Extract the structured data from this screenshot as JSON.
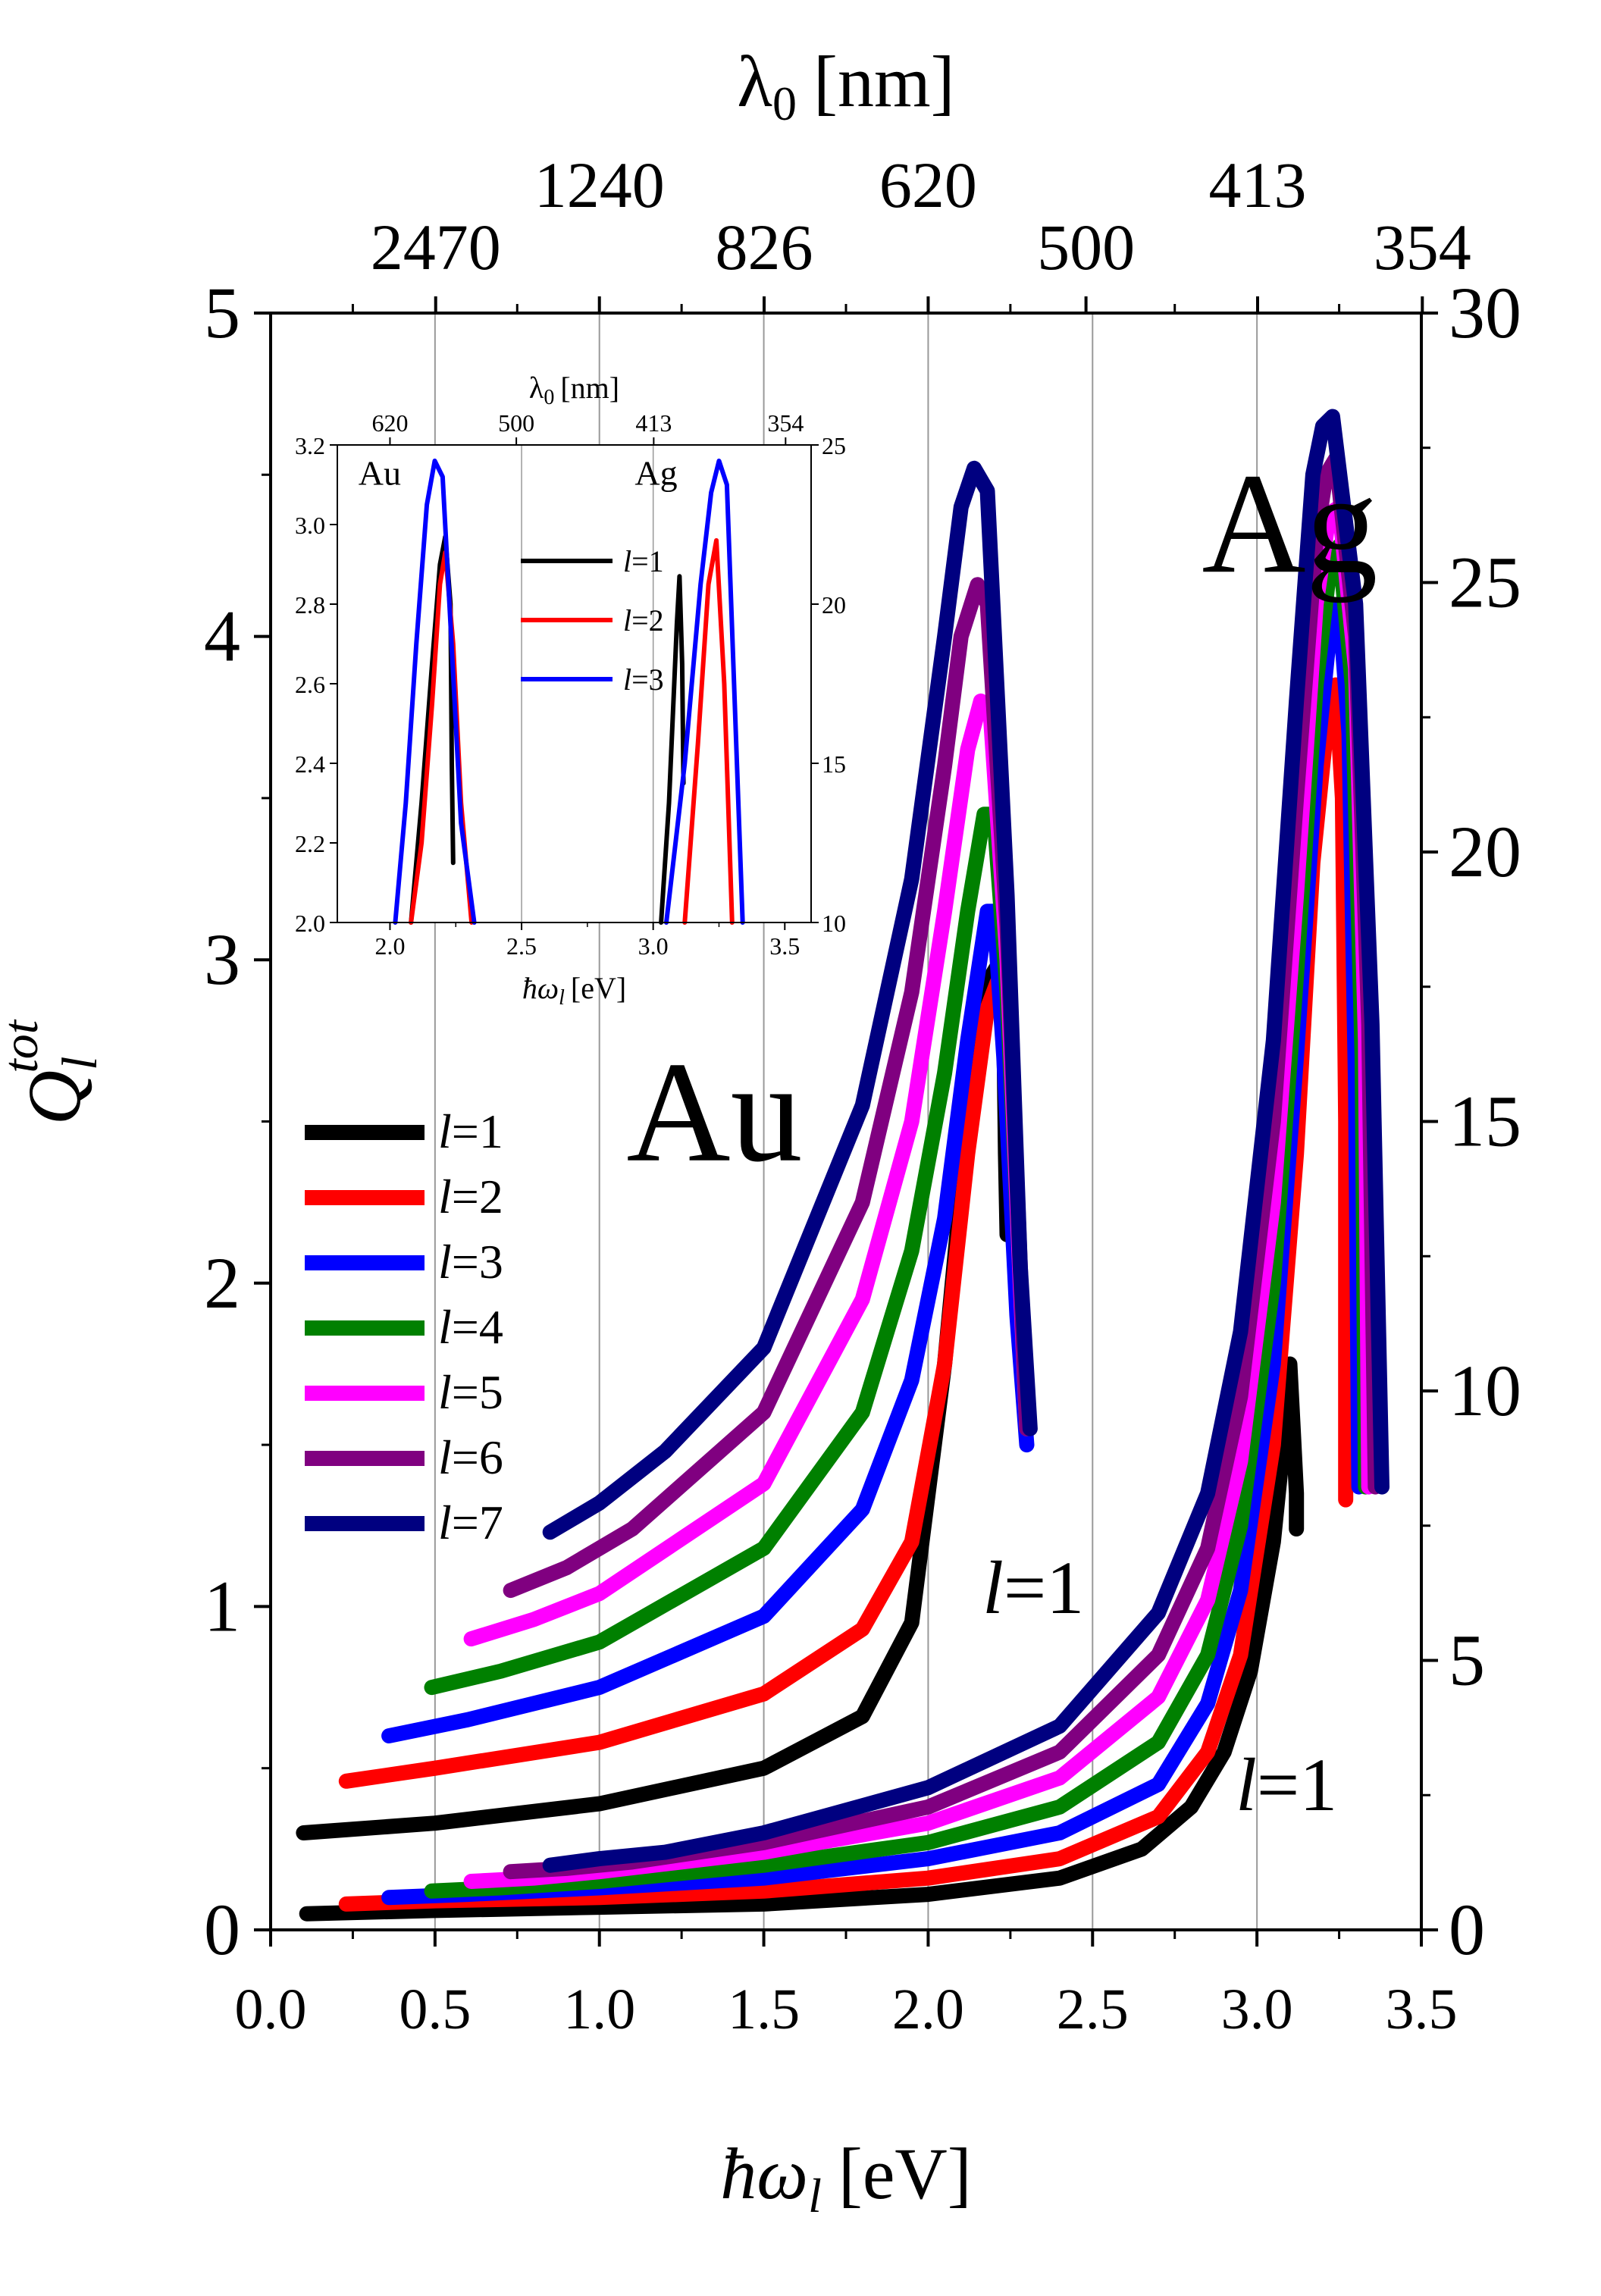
{
  "chart_data": {
    "type": "line",
    "title": "",
    "xlabel": "ħω",
    "xlabel_sub": "l",
    "xlabel_unit": "[eV]",
    "ylabel": "Q",
    "ylabel_sub": "l",
    "ylabel_sup": "tot",
    "top_axis_label": "λ",
    "top_axis_label_sub": "0",
    "top_axis_label_unit": "[nm]",
    "xlim": [
      0.0,
      3.5
    ],
    "ylim_left": [
      0,
      5
    ],
    "ylim_right": [
      0,
      30
    ],
    "x_ticks": [
      "0.0",
      "0.5",
      "1.0",
      "1.5",
      "2.0",
      "2.5",
      "3.0",
      "3.5"
    ],
    "y_left_ticks": [
      "0",
      "1",
      "2",
      "3",
      "4",
      "5"
    ],
    "y_right_ticks": [
      "0",
      "5",
      "10",
      "15",
      "20",
      "25",
      "30"
    ],
    "top_ticks": [
      {
        "label": "2470",
        "ev": 0.502
      },
      {
        "label": "1240",
        "ev": 1.0
      },
      {
        "label": "826",
        "ev": 1.501
      },
      {
        "label": "620",
        "ev": 2.0
      },
      {
        "label": "500",
        "ev": 2.48
      },
      {
        "label": "413",
        "ev": 3.002
      },
      {
        "label": "354",
        "ev": 3.503
      }
    ],
    "grid_x": [
      0.5,
      1.0,
      1.5,
      2.0,
      2.5,
      3.0
    ],
    "annotations": [
      {
        "text": "Au",
        "x": 1.35,
        "y": 2.38
      },
      {
        "text": "Ag",
        "x": 3.1,
        "y": 4.2
      },
      {
        "text": "l=1",
        "x": 2.32,
        "y": 0.98
      },
      {
        "text": "l=1",
        "x": 3.09,
        "y": 0.37
      }
    ],
    "legend": [
      "l=1",
      "l=2",
      "l=3",
      "l=4",
      "l=5",
      "l=6",
      "l=7"
    ],
    "legend_prefix": "l",
    "legend_values": [
      "=1",
      "=2",
      "=3",
      "=4",
      "=5",
      "=6",
      "=7"
    ],
    "legend_position": "left-middle",
    "colors": [
      "#000000",
      "#ff0000",
      "#0000ff",
      "#008000",
      "#ff00ff",
      "#800080",
      "#000080"
    ],
    "series_au": [
      {
        "name": "l=1",
        "x": [
          0.1,
          0.5,
          1.0,
          1.5,
          1.8,
          1.95,
          2.05,
          2.12,
          2.18,
          2.21,
          2.23,
          2.235,
          2.24
        ],
        "y": [
          0.3,
          0.33,
          0.39,
          0.5,
          0.66,
          0.95,
          1.75,
          2.5,
          2.93,
          2.98,
          2.8,
          2.4,
          2.15
        ]
      },
      {
        "name": "l=2",
        "x": [
          0.23,
          0.5,
          1.0,
          1.5,
          1.8,
          1.95,
          2.05,
          2.12,
          2.18,
          2.21,
          2.24,
          2.26,
          2.28
        ],
        "y": [
          0.46,
          0.5,
          0.58,
          0.73,
          0.93,
          1.2,
          1.75,
          2.4,
          2.85,
          2.93,
          2.7,
          2.2,
          1.88
        ]
      },
      {
        "name": "l=3",
        "x": [
          0.36,
          0.6,
          1.0,
          1.5,
          1.8,
          1.95,
          2.05,
          2.12,
          2.18,
          2.2,
          2.23,
          2.27,
          2.3
        ],
        "y": [
          0.6,
          0.65,
          0.75,
          0.97,
          1.3,
          1.7,
          2.2,
          2.75,
          3.15,
          3.15,
          2.7,
          1.9,
          1.5
        ]
      },
      {
        "name": "l=4",
        "x": [
          0.49,
          0.7,
          1.0,
          1.5,
          1.8,
          1.95,
          2.05,
          2.12,
          2.17,
          2.2,
          2.24,
          2.28,
          2.3
        ],
        "y": [
          0.75,
          0.8,
          0.89,
          1.18,
          1.6,
          2.1,
          2.65,
          3.15,
          3.45,
          3.45,
          2.9,
          2.0,
          1.55
        ]
      },
      {
        "name": "l=5",
        "x": [
          0.61,
          0.8,
          1.0,
          1.5,
          1.8,
          1.95,
          2.05,
          2.12,
          2.16,
          2.19,
          2.24,
          2.28,
          2.3
        ],
        "y": [
          0.9,
          0.96,
          1.04,
          1.38,
          1.95,
          2.5,
          3.15,
          3.65,
          3.8,
          3.75,
          3.0,
          2.0,
          1.55
        ]
      },
      {
        "name": "l=6",
        "x": [
          0.73,
          0.9,
          1.1,
          1.5,
          1.8,
          1.95,
          2.05,
          2.1,
          2.15,
          2.18,
          2.24,
          2.28,
          2.3
        ],
        "y": [
          1.05,
          1.12,
          1.24,
          1.6,
          2.25,
          2.9,
          3.6,
          4.0,
          4.16,
          4.1,
          3.1,
          2.05,
          1.55
        ]
      },
      {
        "name": "l=7",
        "x": [
          0.85,
          1.0,
          1.2,
          1.5,
          1.8,
          1.95,
          2.05,
          2.1,
          2.14,
          2.18,
          2.24,
          2.28,
          2.31
        ],
        "y": [
          1.23,
          1.32,
          1.48,
          1.8,
          2.55,
          3.25,
          4.0,
          4.4,
          4.52,
          4.45,
          3.2,
          2.05,
          1.55
        ]
      }
    ],
    "series_ag": [
      {
        "name": "l=1",
        "x": [
          0.11,
          0.5,
          1.0,
          1.5,
          2.0,
          2.4,
          2.65,
          2.8,
          2.9,
          2.98,
          3.05,
          3.09,
          3.1,
          3.11,
          3.12,
          3.12
        ],
        "y": [
          0.05,
          0.06,
          0.07,
          0.08,
          0.11,
          0.16,
          0.25,
          0.38,
          0.55,
          0.8,
          1.2,
          1.6,
          1.75,
          1.55,
          1.35,
          1.24
        ]
      },
      {
        "name": "l=2",
        "x": [
          0.23,
          0.5,
          1.0,
          1.5,
          2.0,
          2.4,
          2.7,
          2.85,
          2.95,
          3.05,
          3.12,
          3.17,
          3.21,
          3.24,
          3.26,
          3.27,
          3.27
        ],
        "y": [
          0.08,
          0.09,
          0.1,
          0.12,
          0.16,
          0.22,
          0.35,
          0.55,
          0.85,
          1.5,
          2.4,
          3.3,
          3.7,
          3.85,
          3.5,
          2.5,
          1.33
        ]
      },
      {
        "name": "l=3",
        "x": [
          0.36,
          0.6,
          1.0,
          1.5,
          2.0,
          2.4,
          2.7,
          2.85,
          2.95,
          3.05,
          3.12,
          3.18,
          3.22,
          3.25,
          3.28,
          3.3,
          3.31
        ],
        "y": [
          0.1,
          0.11,
          0.13,
          0.16,
          0.22,
          0.3,
          0.45,
          0.7,
          1.05,
          1.75,
          2.7,
          3.6,
          4.0,
          4.1,
          3.7,
          2.6,
          1.37
        ]
      },
      {
        "name": "l=4",
        "x": [
          0.49,
          0.7,
          1.0,
          1.5,
          2.0,
          2.4,
          2.7,
          2.85,
          2.95,
          3.05,
          3.12,
          3.18,
          3.22,
          3.25,
          3.29,
          3.32,
          3.33
        ],
        "y": [
          0.12,
          0.13,
          0.15,
          0.2,
          0.27,
          0.38,
          0.58,
          0.85,
          1.25,
          2.0,
          2.95,
          3.85,
          4.2,
          4.28,
          3.85,
          2.7,
          1.37
        ]
      },
      {
        "name": "l=5",
        "x": [
          0.61,
          0.8,
          1.0,
          1.5,
          2.0,
          2.4,
          2.7,
          2.85,
          2.95,
          3.05,
          3.12,
          3.18,
          3.22,
          3.25,
          3.3,
          3.33,
          3.34
        ],
        "y": [
          0.15,
          0.16,
          0.18,
          0.24,
          0.33,
          0.47,
          0.72,
          1.02,
          1.45,
          2.25,
          3.2,
          4.1,
          4.38,
          4.4,
          3.9,
          2.75,
          1.37
        ]
      },
      {
        "name": "l=6",
        "x": [
          0.73,
          0.9,
          1.1,
          1.5,
          2.0,
          2.4,
          2.7,
          2.85,
          2.95,
          3.05,
          3.12,
          3.18,
          3.21,
          3.24,
          3.3,
          3.34,
          3.36
        ],
        "y": [
          0.18,
          0.19,
          0.21,
          0.27,
          0.38,
          0.55,
          0.85,
          1.18,
          1.65,
          2.5,
          3.5,
          4.3,
          4.5,
          4.55,
          4.0,
          2.8,
          1.37
        ]
      },
      {
        "name": "l=7",
        "x": [
          0.85,
          1.0,
          1.2,
          1.5,
          2.0,
          2.4,
          2.7,
          2.85,
          2.95,
          3.05,
          3.12,
          3.17,
          3.2,
          3.23,
          3.3,
          3.35,
          3.38
        ],
        "y": [
          0.2,
          0.22,
          0.24,
          0.3,
          0.44,
          0.63,
          0.98,
          1.35,
          1.85,
          2.75,
          3.8,
          4.5,
          4.65,
          4.68,
          4.1,
          2.8,
          1.37
        ]
      }
    ],
    "inset": {
      "xlabel": "ħω",
      "xlabel_sub": "l",
      "xlabel_unit": "[eV]",
      "top_axis_label": "λ",
      "top_axis_label_sub": "0",
      "top_axis_label_unit": "[nm]",
      "xlim": [
        1.8,
        3.6
      ],
      "ylim_left": [
        2.0,
        3.2
      ],
      "ylim_right": [
        10,
        25
      ],
      "x_ticks": [
        "2.0",
        "2.5",
        "3.0",
        "3.5"
      ],
      "y_left_ticks": [
        "2.0",
        "2.2",
        "2.4",
        "2.6",
        "2.8",
        "3.0",
        "3.2"
      ],
      "y_right_ticks": [
        "10",
        "15",
        "20",
        "25"
      ],
      "top_ticks": [
        {
          "label": "620",
          "ev": 2.0
        },
        {
          "label": "500",
          "ev": 2.48
        },
        {
          "label": "413",
          "ev": 3.002
        },
        {
          "label": "354",
          "ev": 3.503
        }
      ],
      "grid_x": [
        2.5,
        3.0
      ],
      "annotations": [
        {
          "text": "Au",
          "x": 1.88,
          "y": 3.1
        },
        {
          "text": "Ag",
          "x": 2.93,
          "y": 3.1
        }
      ],
      "legend": [
        "l=1",
        "l=2",
        "l=3"
      ],
      "legend_prefix": "l",
      "legend_values": [
        "=1",
        "=2",
        "=3"
      ],
      "legend_position": "center",
      "series_au": [
        {
          "name": "l=1",
          "x": [
            2.08,
            2.12,
            2.16,
            2.19,
            2.21,
            2.23,
            2.235,
            2.24
          ],
          "y": [
            2.0,
            2.3,
            2.65,
            2.9,
            2.97,
            2.8,
            2.4,
            2.15
          ]
        },
        {
          "name": "l=2",
          "x": [
            2.08,
            2.12,
            2.16,
            2.19,
            2.21,
            2.24,
            2.27,
            2.31
          ],
          "y": [
            2.0,
            2.2,
            2.55,
            2.85,
            2.93,
            2.7,
            2.3,
            2.0
          ]
        },
        {
          "name": "l=3",
          "x": [
            2.02,
            2.06,
            2.1,
            2.14,
            2.17,
            2.2,
            2.23,
            2.27,
            2.32
          ],
          "y": [
            2.0,
            2.3,
            2.7,
            3.05,
            3.16,
            3.12,
            2.75,
            2.25,
            2.0
          ]
        }
      ],
      "series_ag": [
        {
          "name": "l=1",
          "x": [
            3.03,
            3.06,
            3.09,
            3.1,
            3.11,
            3.115
          ],
          "y": [
            2.0,
            2.3,
            2.75,
            2.87,
            2.65,
            2.35
          ]
        },
        {
          "name": "l=2",
          "x": [
            3.12,
            3.17,
            3.21,
            3.24,
            3.27,
            3.3
          ],
          "y": [
            2.0,
            2.45,
            2.85,
            2.96,
            2.6,
            2.0
          ]
        },
        {
          "name": "l=3",
          "x": [
            3.05,
            3.12,
            3.18,
            3.22,
            3.25,
            3.28,
            3.31,
            3.34
          ],
          "y": [
            2.0,
            2.4,
            2.85,
            3.08,
            3.16,
            3.1,
            2.55,
            2.0
          ]
        }
      ]
    }
  }
}
